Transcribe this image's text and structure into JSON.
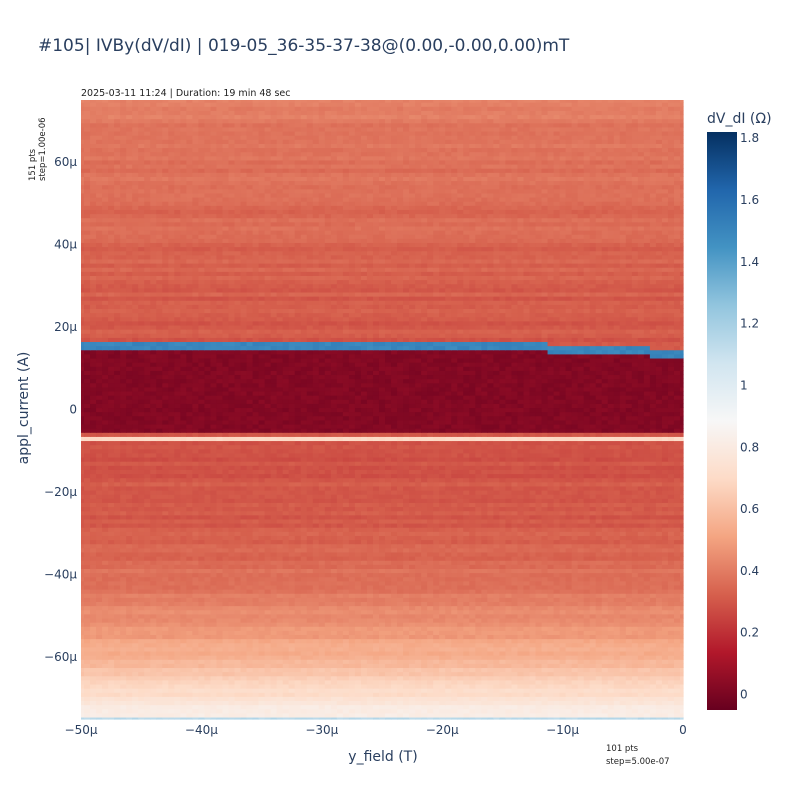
{
  "chart_data": {
    "type": "heatmap",
    "title": "#105| IVBy(dV/dI) | 019-05_36-35-37-38@(0.00,-0.00,0.00)mT",
    "subtitle": "2025-03-11 11:24 | Duration: 19 min 48 sec",
    "xlabel": "y_field (T)",
    "ylabel": "appl_current (A)",
    "x_range": [
      -5e-05,
      0
    ],
    "y_range": [
      -7.5e-05,
      7.5e-05
    ],
    "x_ticks": [
      {
        "value": -5e-05,
        "label": "−50μ"
      },
      {
        "value": -4e-05,
        "label": "−40μ"
      },
      {
        "value": -3e-05,
        "label": "−30μ"
      },
      {
        "value": -2e-05,
        "label": "−20μ"
      },
      {
        "value": -1e-05,
        "label": "−10μ"
      },
      {
        "value": 0,
        "label": "0"
      }
    ],
    "y_ticks": [
      {
        "value": -6e-05,
        "label": "−60μ"
      },
      {
        "value": -4e-05,
        "label": "−40μ"
      },
      {
        "value": -2e-05,
        "label": "−20μ"
      },
      {
        "value": 0,
        "label": "0"
      },
      {
        "value": 2e-05,
        "label": "20μ"
      },
      {
        "value": 4e-05,
        "label": "40μ"
      },
      {
        "value": 6e-05,
        "label": "60μ"
      }
    ],
    "x_points_note": [
      "101 pts",
      "step=5.00e-07"
    ],
    "y_points_note": [
      "151 pts",
      "step=1.00e-06"
    ],
    "colorbar": {
      "title": "dV_dI (Ω)",
      "colorscale": "RdBu",
      "range": [
        -0.05,
        1.82
      ],
      "ticks": [
        {
          "value": 0,
          "label": "0"
        },
        {
          "value": 0.2,
          "label": "0.2"
        },
        {
          "value": 0.4,
          "label": "0.4"
        },
        {
          "value": 0.6,
          "label": "0.6"
        },
        {
          "value": 0.8,
          "label": "0.8"
        },
        {
          "value": 1.0,
          "label": "1"
        },
        {
          "value": 1.2,
          "label": "1.2"
        },
        {
          "value": 1.4,
          "label": "1.4"
        },
        {
          "value": 1.6,
          "label": "1.6"
        },
        {
          "value": 1.8,
          "label": "1.8"
        }
      ]
    },
    "features": {
      "superconducting_band_y": [
        -5.5e-06,
        1.45e-05
      ],
      "superconducting_value": 0.02,
      "positive_switching_peak_y": 1.5e-05,
      "positive_switching_peak_value": 1.5,
      "negative_switching_peak_y": -7e-06,
      "negative_switching_peak_value": 0.7,
      "normal_state_value_high": 0.38,
      "normal_state_value_low": 0.6,
      "bottom_edge_value": 1.15
    }
  }
}
